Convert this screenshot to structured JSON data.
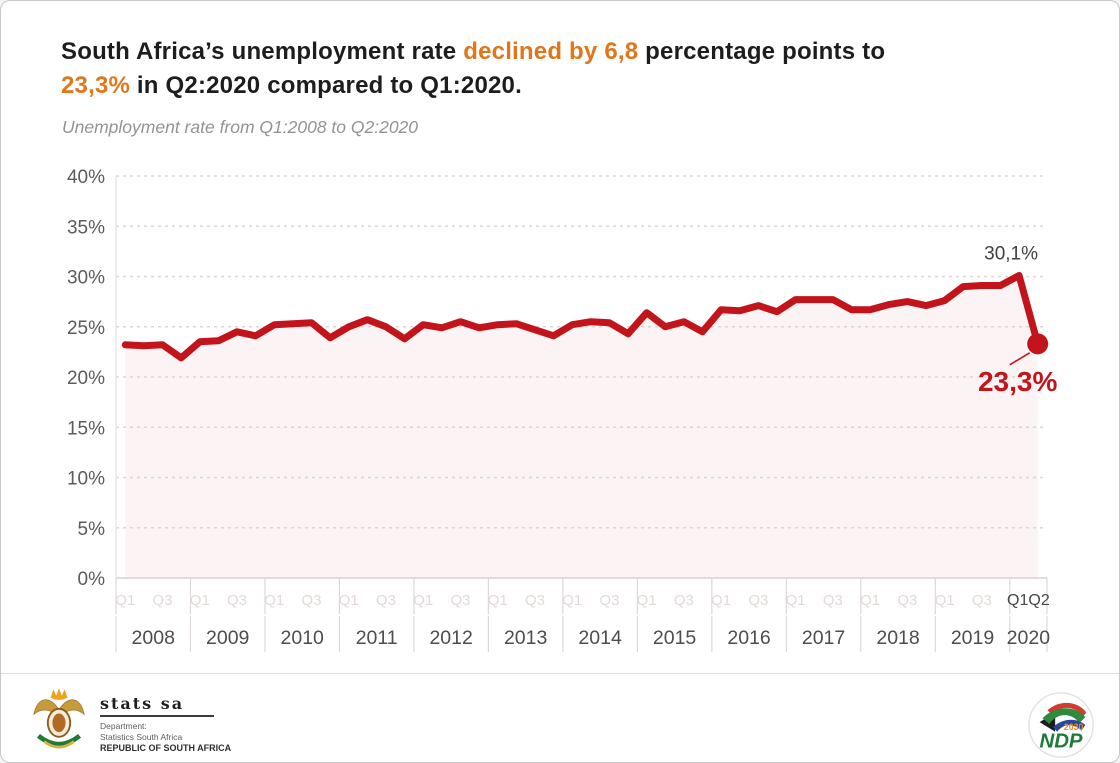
{
  "page": {
    "background": "#ffffff",
    "border_color": "#c9c9c9"
  },
  "header": {
    "title_lines": [
      [
        {
          "t": "South Africa’s unemployment rate ",
          "accent": false
        },
        {
          "t": "declined by 6,8",
          "accent": true
        },
        {
          "t": " percentage points to",
          "accent": false
        }
      ],
      [
        {
          "t": "23,3%",
          "accent": true
        },
        {
          "t": " in Q2:2020 compared to Q1:2020.",
          "accent": false
        }
      ]
    ],
    "accent_color": "#e2761b",
    "subtitle": "Unemployment rate from Q1:2008 to Q2:2020"
  },
  "chart_data": {
    "type": "line",
    "title": "Unemployment rate from Q1:2008 to Q2:2020",
    "unit": "percent",
    "ylim": [
      0,
      40
    ],
    "ytick_step": 5,
    "ytick_suffix": "%",
    "grid": "dashed-horizontal",
    "legend": "none",
    "line_color": "#c3141c",
    "area_fill": "#fcf4f4",
    "series": [
      {
        "name": "Unemployment rate",
        "values": [
          23.2,
          23.1,
          23.2,
          21.9,
          23.5,
          23.6,
          24.5,
          24.1,
          25.2,
          25.3,
          25.4,
          23.9,
          25.0,
          25.7,
          25.0,
          23.8,
          25.2,
          24.9,
          25.5,
          24.9,
          25.2,
          25.3,
          24.7,
          24.1,
          25.2,
          25.5,
          25.4,
          24.3,
          26.4,
          25.0,
          25.5,
          24.5,
          26.7,
          26.6,
          27.1,
          26.5,
          27.7,
          27.7,
          27.7,
          26.7,
          26.7,
          27.2,
          27.5,
          27.1,
          27.6,
          29.0,
          29.1,
          29.1,
          30.1,
          23.3
        ]
      }
    ],
    "years": [
      {
        "year": "2008",
        "n_quarters": 4
      },
      {
        "year": "2009",
        "n_quarters": 4
      },
      {
        "year": "2010",
        "n_quarters": 4
      },
      {
        "year": "2011",
        "n_quarters": 4
      },
      {
        "year": "2012",
        "n_quarters": 4
      },
      {
        "year": "2013",
        "n_quarters": 4
      },
      {
        "year": "2014",
        "n_quarters": 4
      },
      {
        "year": "2015",
        "n_quarters": 4
      },
      {
        "year": "2016",
        "n_quarters": 4
      },
      {
        "year": "2017",
        "n_quarters": 4
      },
      {
        "year": "2018",
        "n_quarters": 4
      },
      {
        "year": "2019",
        "n_quarters": 4
      },
      {
        "year": "2020",
        "n_quarters": 2
      }
    ],
    "x_quarter_tick_labels_faint": [
      "Q1",
      "Q3"
    ],
    "x_final_quarter_label": "Q1Q2",
    "annotations": [
      {
        "text": "30,1%",
        "quarter_index": 48,
        "placement": "above",
        "color": "#414141"
      },
      {
        "text": "23,3%",
        "quarter_index": 49,
        "placement": "below-left",
        "color": "#c3141c",
        "emphasis": true
      }
    ]
  },
  "footer": {
    "statssa": {
      "logo": "south-africa-coat-of-arms",
      "name": "stats sa",
      "dept_line1": "Department:",
      "dept_line2": "Statistics South Africa",
      "dept_line3": "REPUBLIC OF SOUTH AFRICA"
    },
    "ndp": {
      "logo": "ndp-2030-badge",
      "label": "NDP",
      "year": "2030"
    }
  }
}
